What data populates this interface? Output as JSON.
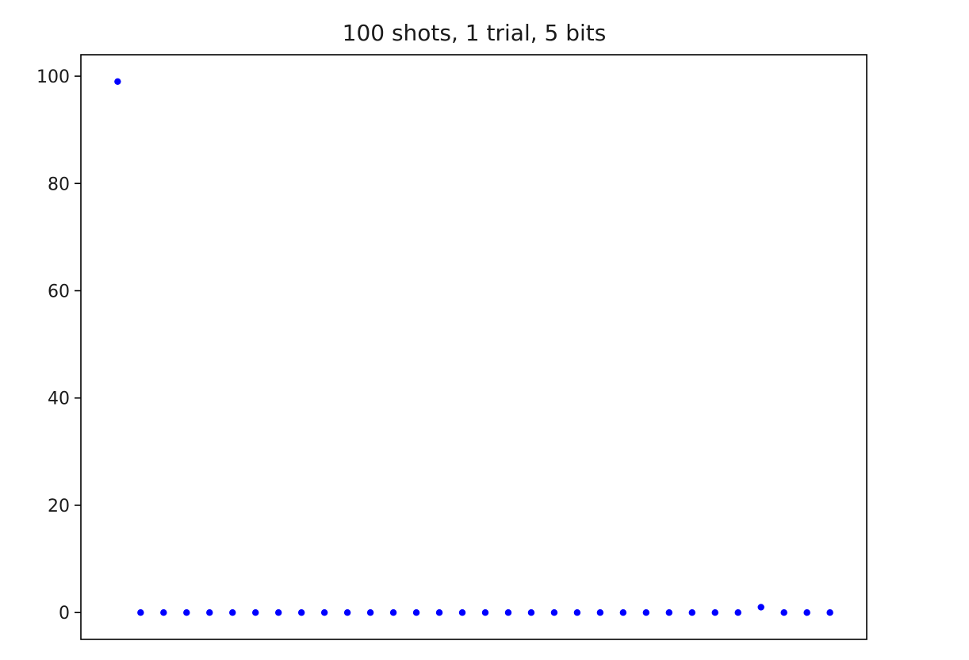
{
  "chart_data": {
    "type": "scatter",
    "title": "100 shots, 1 trial, 5 bits",
    "xlabel": "",
    "ylabel": "",
    "x": [
      0,
      1,
      2,
      3,
      4,
      5,
      6,
      7,
      8,
      9,
      10,
      11,
      12,
      13,
      14,
      15,
      16,
      17,
      18,
      19,
      20,
      21,
      22,
      23,
      24,
      25,
      26,
      27,
      28,
      29,
      30,
      31
    ],
    "series": [
      {
        "values": [
          99,
          0,
          0,
          0,
          0,
          0,
          0,
          0,
          0,
          0,
          0,
          0,
          0,
          0,
          0,
          0,
          0,
          0,
          0,
          0,
          0,
          0,
          0,
          0,
          0,
          0,
          0,
          0,
          1,
          0,
          0,
          0
        ],
        "color": "#0000ff"
      }
    ],
    "ylim": [
      -5,
      104
    ],
    "xlim": [
      -1.6,
      32.6
    ],
    "yticks": [
      0,
      20,
      40,
      60,
      80,
      100
    ],
    "ytick_labels": [
      "0",
      "20",
      "40",
      "60",
      "80",
      "100"
    ],
    "xticks_visible": false,
    "grid": false,
    "legend": false
  }
}
